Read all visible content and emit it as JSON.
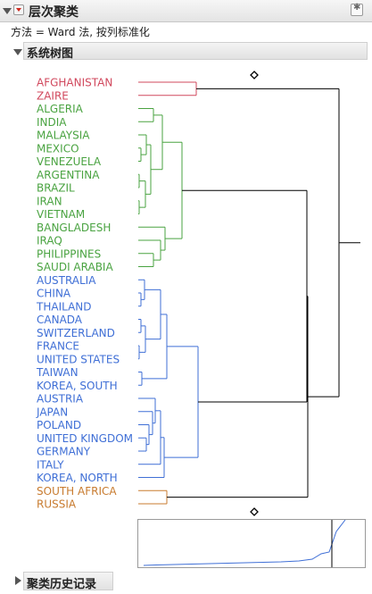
{
  "report": {
    "title": "层次聚类",
    "method_label": "方法 = Ward 法, 按列标准化"
  },
  "dendrogram_section": {
    "title": "系统树图"
  },
  "history_section": {
    "title": "聚类历史记录"
  },
  "colors": {
    "red": "#d1485d",
    "green": "#4aa341",
    "blue": "#3f6fd6",
    "orange": "#c87b2f",
    "join_line": "#000000"
  },
  "countries": [
    {
      "name": "AFGHANISTAN",
      "group": "red"
    },
    {
      "name": "ZAIRE",
      "group": "red"
    },
    {
      "name": "ALGERIA",
      "group": "green"
    },
    {
      "name": "INDIA",
      "group": "green"
    },
    {
      "name": "MALAYSIA",
      "group": "green"
    },
    {
      "name": "MEXICO",
      "group": "green"
    },
    {
      "name": "VENEZUELA",
      "group": "green"
    },
    {
      "name": "ARGENTINA",
      "group": "green"
    },
    {
      "name": "BRAZIL",
      "group": "green"
    },
    {
      "name": "IRAN",
      "group": "green"
    },
    {
      "name": "VIETNAM",
      "group": "green"
    },
    {
      "name": "BANGLADESH",
      "group": "green"
    },
    {
      "name": "IRAQ",
      "group": "green"
    },
    {
      "name": "PHILIPPINES",
      "group": "green"
    },
    {
      "name": "SAUDI ARABIA",
      "group": "green"
    },
    {
      "name": "AUSTRALIA",
      "group": "blue"
    },
    {
      "name": "CHINA",
      "group": "blue"
    },
    {
      "name": "THAILAND",
      "group": "blue"
    },
    {
      "name": "CANADA",
      "group": "blue"
    },
    {
      "name": "SWITZERLAND",
      "group": "blue"
    },
    {
      "name": "FRANCE",
      "group": "blue"
    },
    {
      "name": "UNITED STATES",
      "group": "blue"
    },
    {
      "name": "TAIWAN",
      "group": "blue"
    },
    {
      "name": "KOREA, SOUTH",
      "group": "blue"
    },
    {
      "name": "AUSTRIA",
      "group": "blue"
    },
    {
      "name": "JAPAN",
      "group": "blue"
    },
    {
      "name": "POLAND",
      "group": "blue"
    },
    {
      "name": "UNITED KINGDOM",
      "group": "blue"
    },
    {
      "name": "GERMANY",
      "group": "blue"
    },
    {
      "name": "ITALY",
      "group": "blue"
    },
    {
      "name": "KOREA, NORTH",
      "group": "blue"
    },
    {
      "name": "SOUTH AFRICA",
      "group": "orange"
    },
    {
      "name": "RUSSIA",
      "group": "orange"
    }
  ]
}
